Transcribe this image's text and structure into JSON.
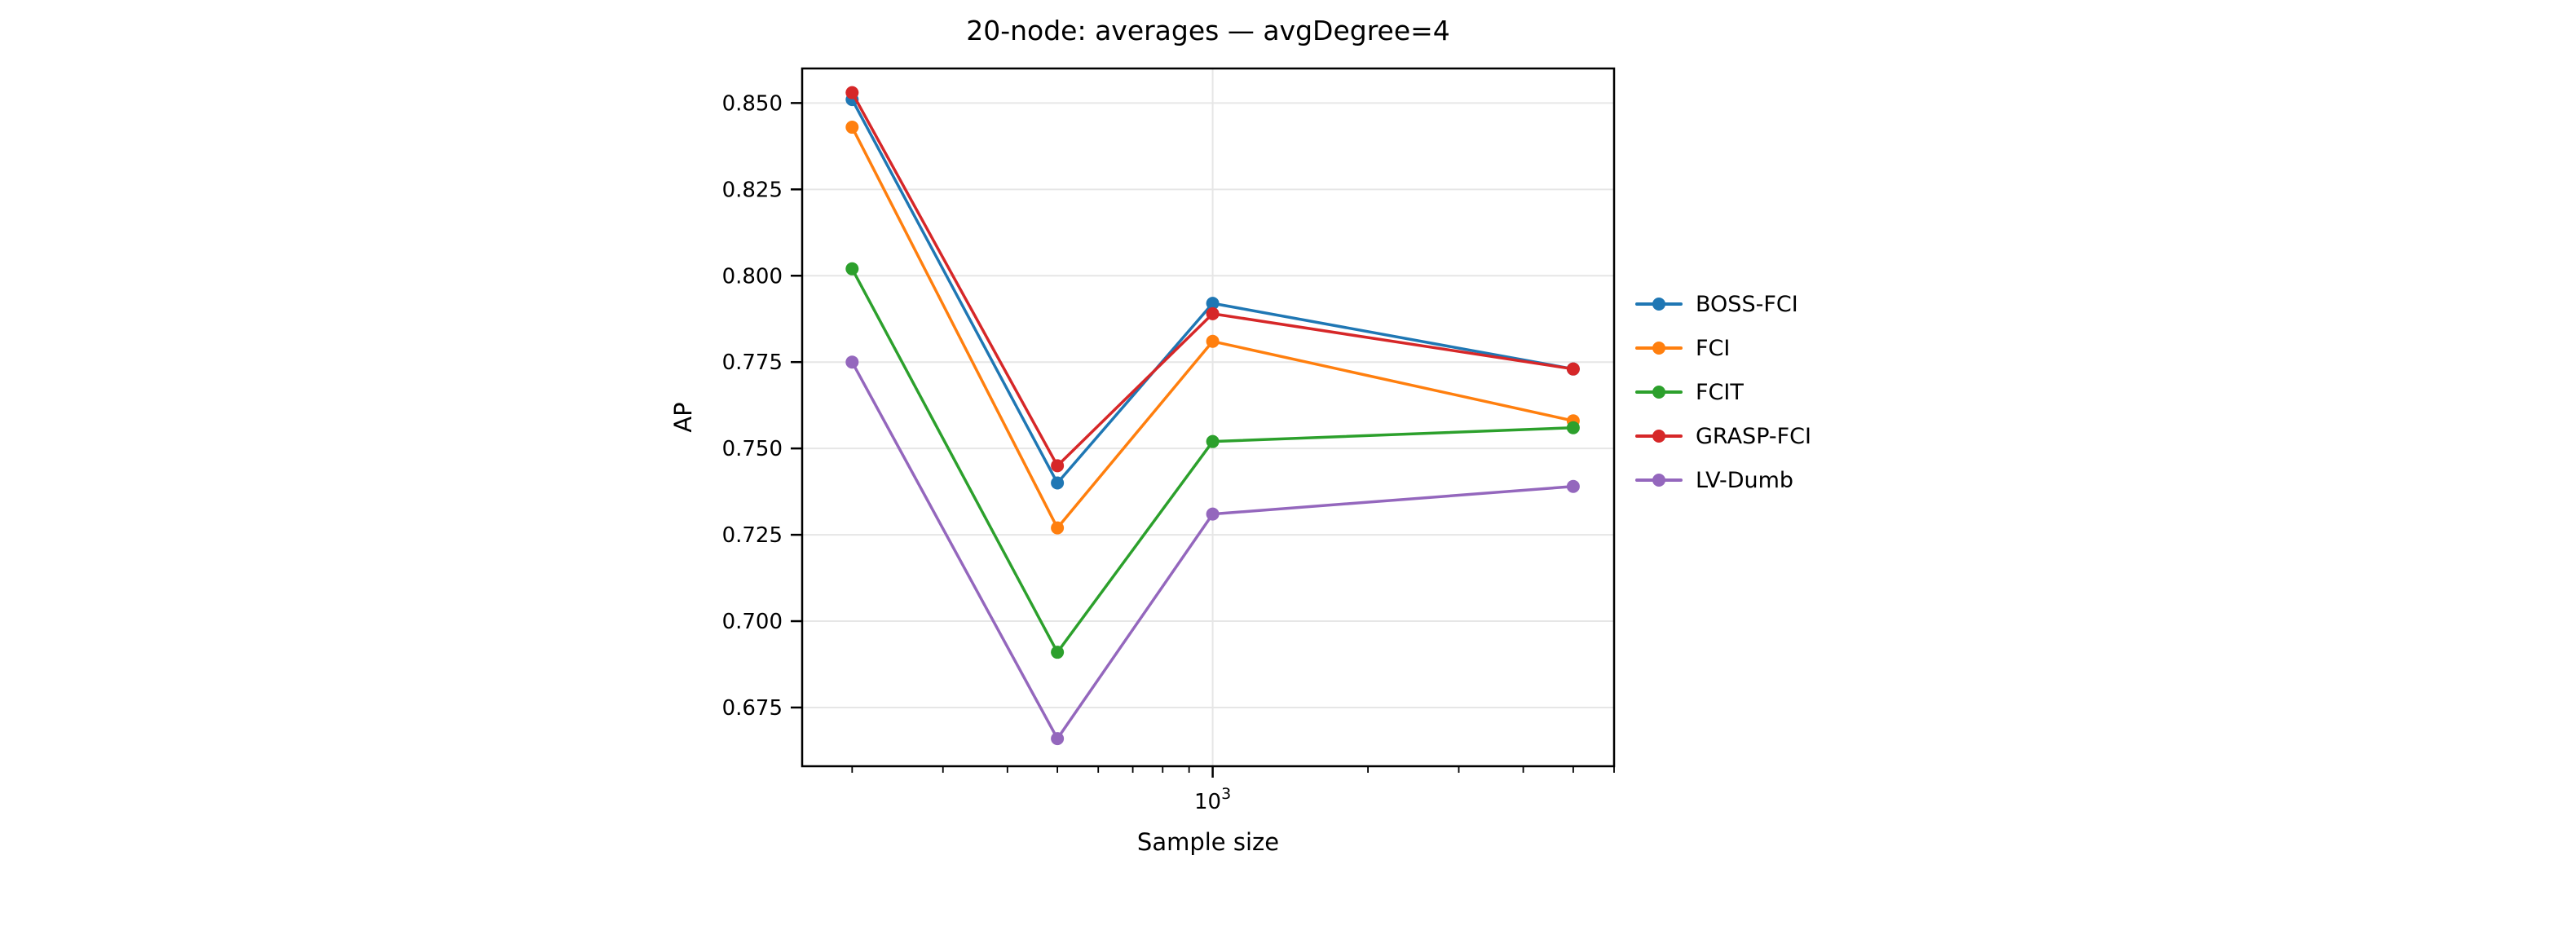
{
  "chart_data": {
    "type": "line",
    "title": "20-node: averages — avgDegree=4",
    "xlabel": "Sample size",
    "ylabel": "AP",
    "xscale": "log",
    "x": [
      200,
      500,
      1000,
      5000
    ],
    "xlim": [
      160,
      6000
    ],
    "ylim": [
      0.658,
      0.86
    ],
    "grid": true,
    "legend_position": "right of axes",
    "yticks": [
      {
        "value": 0.675,
        "label": "0.675"
      },
      {
        "value": 0.7,
        "label": "0.700"
      },
      {
        "value": 0.725,
        "label": "0.725"
      },
      {
        "value": 0.75,
        "label": "0.750"
      },
      {
        "value": 0.775,
        "label": "0.775"
      },
      {
        "value": 0.8,
        "label": "0.800"
      },
      {
        "value": 0.825,
        "label": "0.825"
      },
      {
        "value": 0.85,
        "label": "0.850"
      }
    ],
    "xticks_major": [
      {
        "value": 1000,
        "base": "10",
        "power": "3"
      }
    ],
    "series": [
      {
        "name": "BOSS-FCI",
        "color": "#1f77b4",
        "values": [
          0.851,
          0.74,
          0.792,
          0.773
        ]
      },
      {
        "name": "FCI",
        "color": "#ff7f0e",
        "values": [
          0.843,
          0.727,
          0.781,
          0.758
        ]
      },
      {
        "name": "FCIT",
        "color": "#2ca02c",
        "values": [
          0.802,
          0.691,
          0.752,
          0.756
        ]
      },
      {
        "name": "GRASP-FCI",
        "color": "#d62728",
        "values": [
          0.853,
          0.745,
          0.789,
          0.773
        ]
      },
      {
        "name": "LV-Dumb",
        "color": "#9467bd",
        "values": [
          0.775,
          0.666,
          0.731,
          0.739
        ]
      }
    ],
    "colors": {
      "grid": "#e6e6e6",
      "spine": "#000000",
      "background": "#ffffff"
    }
  }
}
